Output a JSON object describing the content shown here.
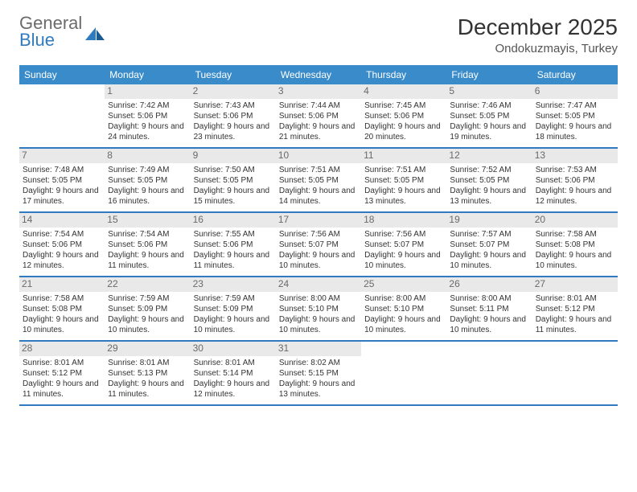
{
  "brand": {
    "line1": "General",
    "line2": "Blue",
    "color_gray": "#6b6b6b",
    "color_blue": "#2f7bbf"
  },
  "title": "December 2025",
  "subtitle": "Ondokuzmayis, Turkey",
  "header_bg": "#3a8bc9",
  "row_border": "#2f7bbf",
  "daynum_bg": "#e9e9e9",
  "days": [
    "Sunday",
    "Monday",
    "Tuesday",
    "Wednesday",
    "Thursday",
    "Friday",
    "Saturday"
  ],
  "weeks": [
    [
      null,
      {
        "n": "1",
        "sr": "7:42 AM",
        "ss": "5:06 PM",
        "dl": "9 hours and 24 minutes."
      },
      {
        "n": "2",
        "sr": "7:43 AM",
        "ss": "5:06 PM",
        "dl": "9 hours and 23 minutes."
      },
      {
        "n": "3",
        "sr": "7:44 AM",
        "ss": "5:06 PM",
        "dl": "9 hours and 21 minutes."
      },
      {
        "n": "4",
        "sr": "7:45 AM",
        "ss": "5:06 PM",
        "dl": "9 hours and 20 minutes."
      },
      {
        "n": "5",
        "sr": "7:46 AM",
        "ss": "5:05 PM",
        "dl": "9 hours and 19 minutes."
      },
      {
        "n": "6",
        "sr": "7:47 AM",
        "ss": "5:05 PM",
        "dl": "9 hours and 18 minutes."
      }
    ],
    [
      {
        "n": "7",
        "sr": "7:48 AM",
        "ss": "5:05 PM",
        "dl": "9 hours and 17 minutes."
      },
      {
        "n": "8",
        "sr": "7:49 AM",
        "ss": "5:05 PM",
        "dl": "9 hours and 16 minutes."
      },
      {
        "n": "9",
        "sr": "7:50 AM",
        "ss": "5:05 PM",
        "dl": "9 hours and 15 minutes."
      },
      {
        "n": "10",
        "sr": "7:51 AM",
        "ss": "5:05 PM",
        "dl": "9 hours and 14 minutes."
      },
      {
        "n": "11",
        "sr": "7:51 AM",
        "ss": "5:05 PM",
        "dl": "9 hours and 13 minutes."
      },
      {
        "n": "12",
        "sr": "7:52 AM",
        "ss": "5:05 PM",
        "dl": "9 hours and 13 minutes."
      },
      {
        "n": "13",
        "sr": "7:53 AM",
        "ss": "5:06 PM",
        "dl": "9 hours and 12 minutes."
      }
    ],
    [
      {
        "n": "14",
        "sr": "7:54 AM",
        "ss": "5:06 PM",
        "dl": "9 hours and 12 minutes."
      },
      {
        "n": "15",
        "sr": "7:54 AM",
        "ss": "5:06 PM",
        "dl": "9 hours and 11 minutes."
      },
      {
        "n": "16",
        "sr": "7:55 AM",
        "ss": "5:06 PM",
        "dl": "9 hours and 11 minutes."
      },
      {
        "n": "17",
        "sr": "7:56 AM",
        "ss": "5:07 PM",
        "dl": "9 hours and 10 minutes."
      },
      {
        "n": "18",
        "sr": "7:56 AM",
        "ss": "5:07 PM",
        "dl": "9 hours and 10 minutes."
      },
      {
        "n": "19",
        "sr": "7:57 AM",
        "ss": "5:07 PM",
        "dl": "9 hours and 10 minutes."
      },
      {
        "n": "20",
        "sr": "7:58 AM",
        "ss": "5:08 PM",
        "dl": "9 hours and 10 minutes."
      }
    ],
    [
      {
        "n": "21",
        "sr": "7:58 AM",
        "ss": "5:08 PM",
        "dl": "9 hours and 10 minutes."
      },
      {
        "n": "22",
        "sr": "7:59 AM",
        "ss": "5:09 PM",
        "dl": "9 hours and 10 minutes."
      },
      {
        "n": "23",
        "sr": "7:59 AM",
        "ss": "5:09 PM",
        "dl": "9 hours and 10 minutes."
      },
      {
        "n": "24",
        "sr": "8:00 AM",
        "ss": "5:10 PM",
        "dl": "9 hours and 10 minutes."
      },
      {
        "n": "25",
        "sr": "8:00 AM",
        "ss": "5:10 PM",
        "dl": "9 hours and 10 minutes."
      },
      {
        "n": "26",
        "sr": "8:00 AM",
        "ss": "5:11 PM",
        "dl": "9 hours and 10 minutes."
      },
      {
        "n": "27",
        "sr": "8:01 AM",
        "ss": "5:12 PM",
        "dl": "9 hours and 11 minutes."
      }
    ],
    [
      {
        "n": "28",
        "sr": "8:01 AM",
        "ss": "5:12 PM",
        "dl": "9 hours and 11 minutes."
      },
      {
        "n": "29",
        "sr": "8:01 AM",
        "ss": "5:13 PM",
        "dl": "9 hours and 11 minutes."
      },
      {
        "n": "30",
        "sr": "8:01 AM",
        "ss": "5:14 PM",
        "dl": "9 hours and 12 minutes."
      },
      {
        "n": "31",
        "sr": "8:02 AM",
        "ss": "5:15 PM",
        "dl": "9 hours and 13 minutes."
      },
      null,
      null,
      null
    ]
  ],
  "labels": {
    "sunrise": "Sunrise:",
    "sunset": "Sunset:",
    "daylight": "Daylight:"
  }
}
